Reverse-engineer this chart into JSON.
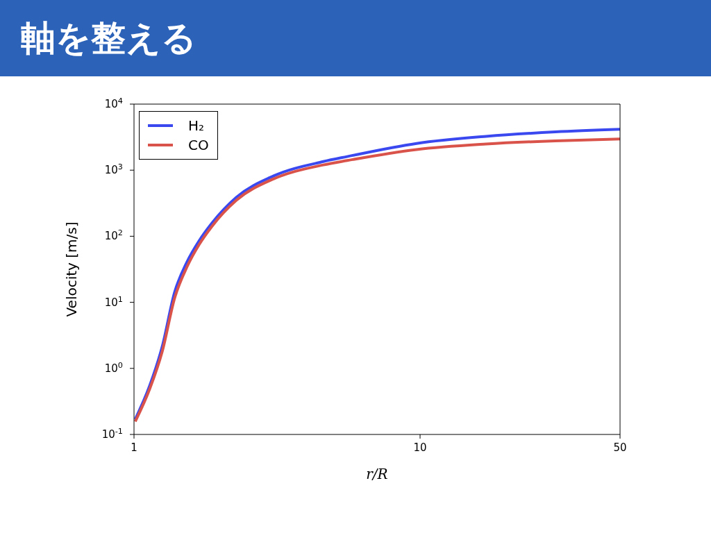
{
  "chart_data": {
    "type": "line",
    "title": "軸を整える",
    "xlabel": "r/R",
    "ylabel": "Velocity [m/s]",
    "log": "xy",
    "xlim": [
      1,
      50
    ],
    "xticks": [
      1,
      10,
      50
    ],
    "ylim": [
      0.1,
      10000
    ],
    "yticks": [
      {
        "value": 0.1,
        "label": "10$^{-1}$"
      },
      {
        "value": 1,
        "label": "10$^{0}$"
      },
      {
        "value": 10,
        "label": "10$^{1}$"
      },
      {
        "value": 100,
        "label": "10$^{2}$"
      },
      {
        "value": 1000,
        "label": "10$^{3}$"
      },
      {
        "value": 10000,
        "label": "10$^{4}$"
      }
    ],
    "legend": "top left",
    "marker": "none",
    "line_style": "solid",
    "series": [
      {
        "name": "H₂",
        "color": "#3a48f0",
        "x": [
          1.01,
          1.135,
          1.255,
          1.386,
          1.53,
          1.69,
          1.87,
          2.28,
          3.08,
          4.59,
          5.56,
          9.72,
          17,
          29.7,
          50
        ],
        "values": [
          0.17,
          0.55,
          2.14,
          14.1,
          40.4,
          85.7,
          157,
          389,
          820,
          1350,
          1607,
          2540,
          3250,
          3790,
          4150
        ]
      },
      {
        "name": "CO",
        "color": "#d9534a",
        "x": [
          1.01,
          1.135,
          1.255,
          1.386,
          1.53,
          1.69,
          1.87,
          2.28,
          3.08,
          4.59,
          5.56,
          9.72,
          17,
          29.7,
          50
        ],
        "values": [
          0.157,
          0.49,
          1.8,
          11.5,
          34,
          75,
          140,
          350,
          740,
          1200,
          1400,
          2055,
          2490,
          2780,
          2960
        ]
      }
    ]
  }
}
